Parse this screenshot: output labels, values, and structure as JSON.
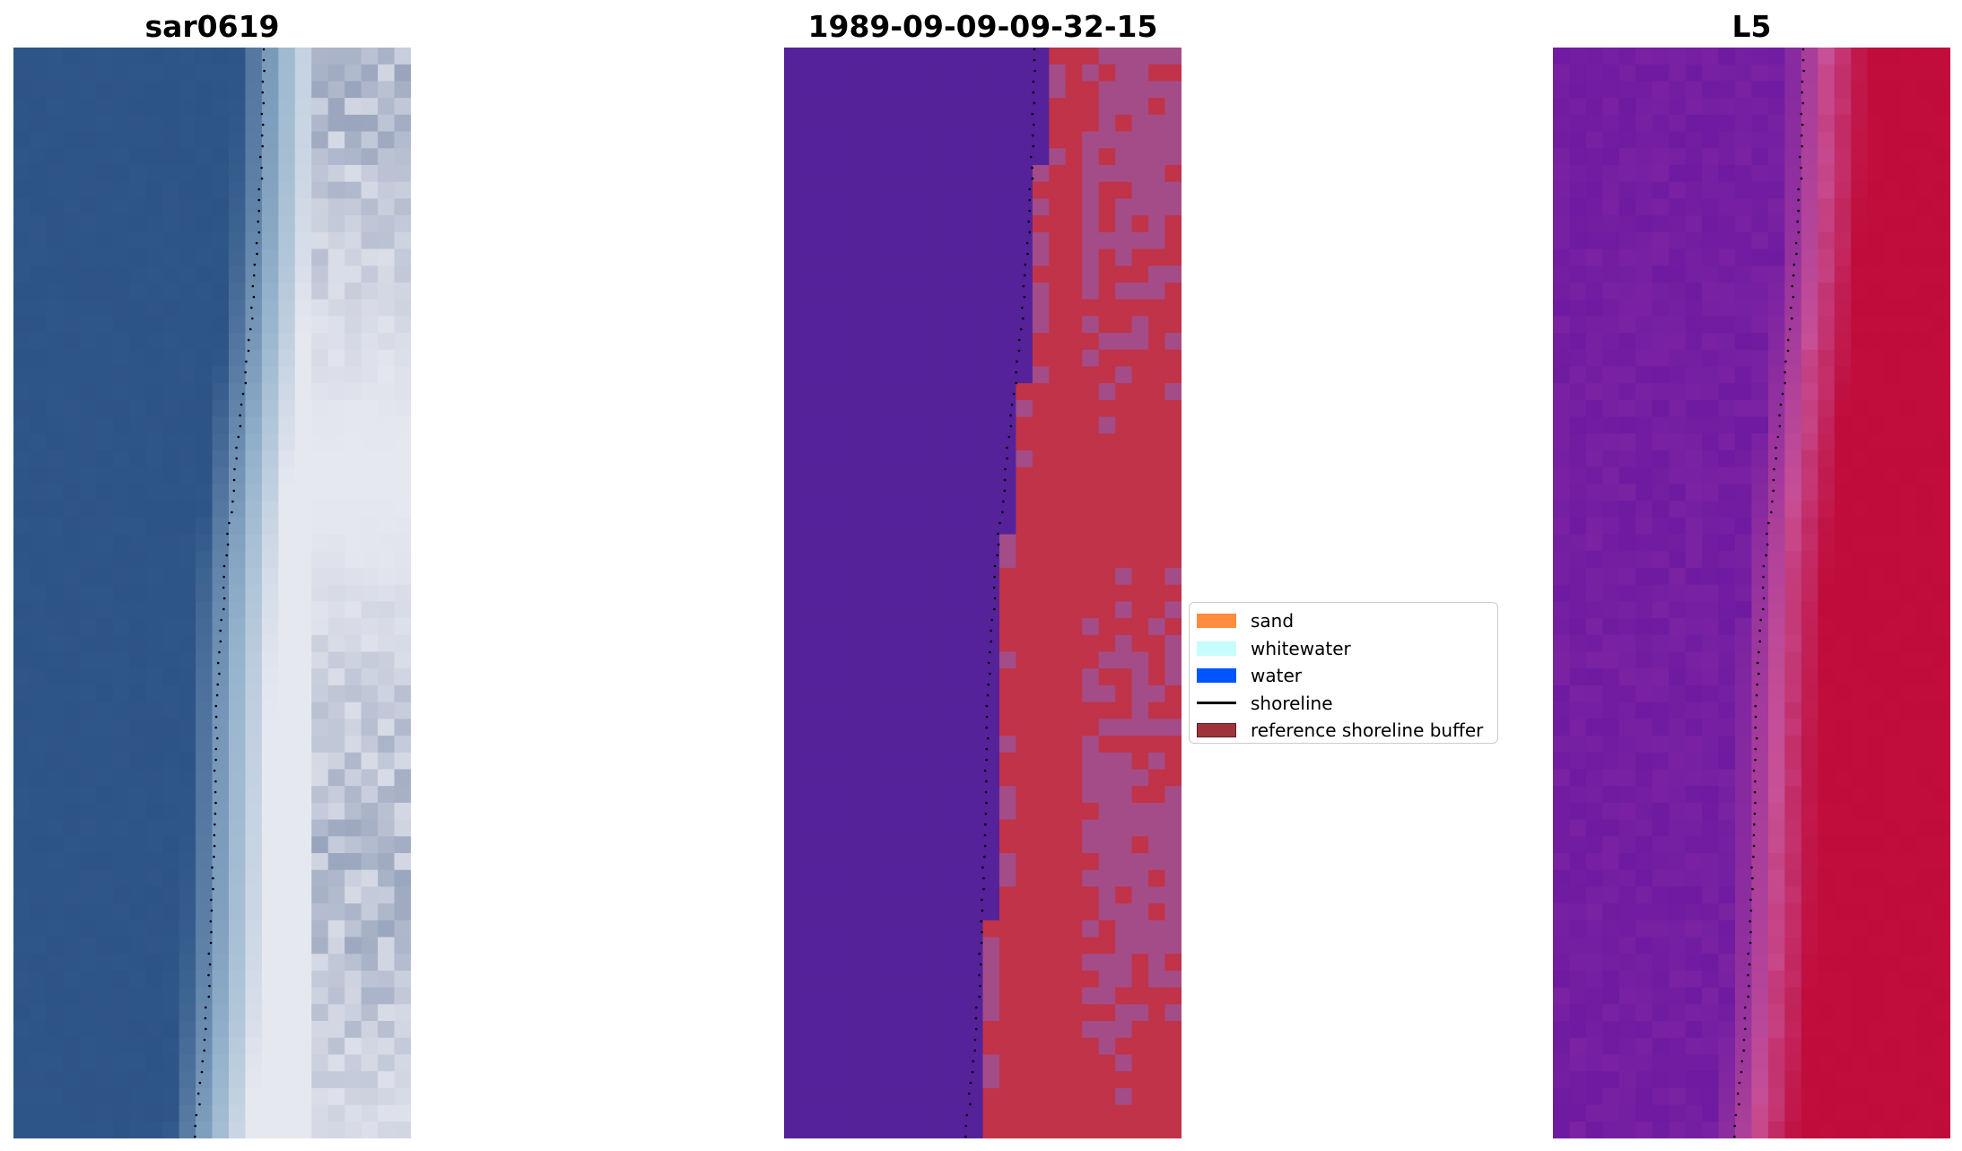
{
  "panels": [
    {
      "title": "sar0619",
      "image": "rgb"
    },
    {
      "title": "1989-09-09-09-32-15",
      "image": "classification"
    },
    {
      "title": "L5",
      "image": "index"
    }
  ],
  "legend": {
    "items": [
      {
        "label": "sand",
        "kind": "patch",
        "color": "#ff8c3f"
      },
      {
        "label": "whitewater",
        "kind": "patch",
        "color": "#c6fcfc"
      },
      {
        "label": "water",
        "kind": "patch",
        "color": "#0055ff"
      },
      {
        "label": "shoreline",
        "kind": "line",
        "color": "#000000"
      },
      {
        "label": "reference shoreline buffer",
        "kind": "patch",
        "color": "#9d343b"
      }
    ]
  },
  "colors": {
    "rgb_water": "#2f5688",
    "rgb_sand": "#e6e8f0",
    "class_water": "#55229a",
    "class_sand": "#c03348",
    "class_buffer": "#a44c88",
    "index_water": "#7a22a2",
    "index_sand": "#c10d3c"
  }
}
